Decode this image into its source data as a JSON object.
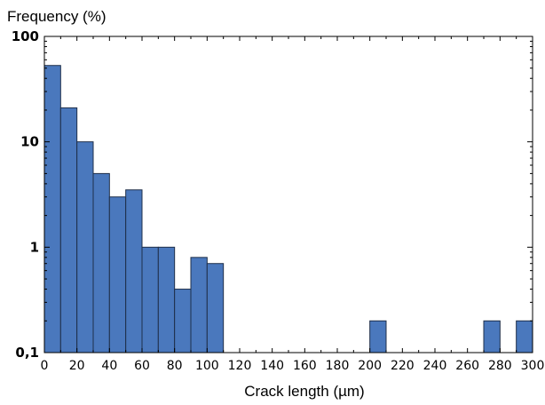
{
  "chart_data": {
    "type": "bar",
    "ylabel": "Frequency (%)",
    "xlabel": "Crack length (µm)",
    "yscale": "log",
    "ylim": [
      0.1,
      100
    ],
    "xlim": [
      0,
      300
    ],
    "bin_width": 10,
    "y_ticks": [
      {
        "value": 100,
        "label": "100"
      },
      {
        "value": 10,
        "label": "10"
      },
      {
        "value": 1,
        "label": "1"
      },
      {
        "value": 0.1,
        "label": "0,1"
      }
    ],
    "x_ticks": [
      0,
      20,
      40,
      60,
      80,
      100,
      120,
      140,
      160,
      180,
      200,
      220,
      240,
      260,
      280,
      300
    ],
    "x_tick_labels": [
      "0",
      "20",
      "40",
      "60",
      "80",
      "100",
      "120",
      "140",
      "160",
      "180",
      "200",
      "220",
      "240",
      "260",
      "280",
      "300"
    ],
    "bars": [
      {
        "x0": 0,
        "x1": 10,
        "value": 53
      },
      {
        "x0": 10,
        "x1": 20,
        "value": 21
      },
      {
        "x0": 20,
        "x1": 30,
        "value": 10
      },
      {
        "x0": 30,
        "x1": 40,
        "value": 5
      },
      {
        "x0": 40,
        "x1": 50,
        "value": 3
      },
      {
        "x0": 50,
        "x1": 60,
        "value": 3.5
      },
      {
        "x0": 60,
        "x1": 70,
        "value": 1
      },
      {
        "x0": 70,
        "x1": 80,
        "value": 1
      },
      {
        "x0": 80,
        "x1": 90,
        "value": 0.4
      },
      {
        "x0": 90,
        "x1": 100,
        "value": 0.8
      },
      {
        "x0": 100,
        "x1": 110,
        "value": 0.7
      },
      {
        "x0": 200,
        "x1": 210,
        "value": 0.2
      },
      {
        "x0": 270,
        "x1": 280,
        "value": 0.2
      },
      {
        "x0": 290,
        "x1": 300,
        "value": 0.2
      }
    ],
    "grid": false,
    "legend": "none",
    "bar_color": "#4a78bd",
    "bar_edge_color": "#1f2f4a"
  }
}
